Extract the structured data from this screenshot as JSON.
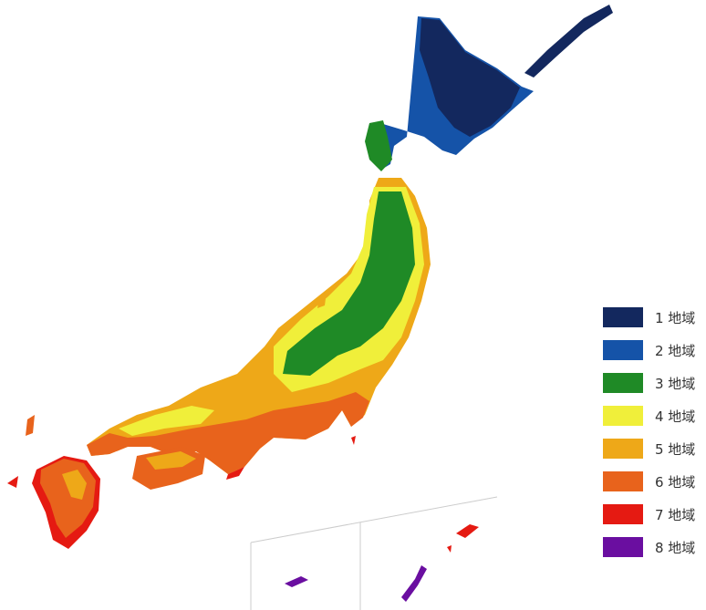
{
  "legend": {
    "items": [
      {
        "label": "1 地域",
        "color": "#13285e"
      },
      {
        "label": "2 地域",
        "color": "#1553a8"
      },
      {
        "label": "3 地域",
        "color": "#1f8a26"
      },
      {
        "label": "4 地域",
        "color": "#f0ef3a"
      },
      {
        "label": "5 地域",
        "color": "#eea818"
      },
      {
        "label": "6 地域",
        "color": "#e8631c"
      },
      {
        "label": "7 地域",
        "color": "#e51a12"
      },
      {
        "label": "8 地域",
        "color": "#6a0ea0"
      }
    ]
  }
}
